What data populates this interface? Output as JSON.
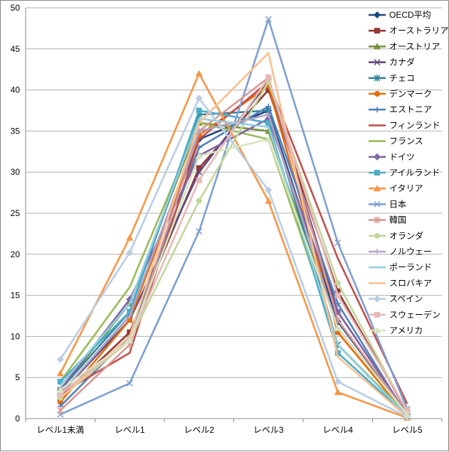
{
  "chart_data": {
    "type": "line",
    "title": "",
    "xlabel": "",
    "ylabel": "",
    "ylim": [
      0,
      50
    ],
    "yticks": [
      0,
      5,
      10,
      15,
      20,
      25,
      30,
      35,
      40,
      45,
      50
    ],
    "grid": "horizontal",
    "legend": "right",
    "categories": [
      "レベル1未満",
      "レベル1",
      "レベル2",
      "レベル3",
      "レベル4",
      "レベル5"
    ],
    "series": [
      {
        "name": "OECD平均",
        "color": "#1F497D",
        "marker": "diamond",
        "values": [
          3.0,
          12.5,
          34.0,
          37.5,
          11.8,
          0.5
        ]
      },
      {
        "name": "オーストラリア",
        "color": "#953735",
        "marker": "square",
        "values": [
          2.5,
          10.5,
          30.5,
          40.0,
          15.5,
          0.8
        ]
      },
      {
        "name": "オーストリア",
        "color": "#77933C",
        "marker": "triangle",
        "values": [
          3.5,
          14.0,
          36.0,
          35.0,
          11.0,
          0.5
        ]
      },
      {
        "name": "カナダ",
        "color": "#604A7B",
        "marker": "x",
        "values": [
          3.0,
          12.0,
          30.0,
          41.0,
          13.0,
          0.5
        ]
      },
      {
        "name": "チェコ",
        "color": "#31859C",
        "marker": "star",
        "values": [
          3.5,
          13.0,
          37.0,
          37.5,
          9.0,
          0.3
        ]
      },
      {
        "name": "デンマーク",
        "color": "#E46C0A",
        "marker": "circle",
        "values": [
          2.0,
          12.0,
          34.5,
          40.5,
          10.5,
          0.3
        ]
      },
      {
        "name": "エストニア",
        "color": "#4F81BD",
        "marker": "plus",
        "values": [
          1.5,
          10.0,
          33.0,
          38.0,
          14.0,
          0.3
        ]
      },
      {
        "name": "フィンランド",
        "color": "#C0504D",
        "marker": "none",
        "values": [
          3.0,
          8.0,
          34.0,
          41.0,
          19.5,
          1.8
        ]
      },
      {
        "name": "フランス",
        "color": "#9BBB59",
        "marker": "none",
        "values": [
          4.5,
          16.0,
          36.0,
          34.0,
          9.0,
          0.5
        ]
      },
      {
        "name": "ドイツ",
        "color": "#8064A2",
        "marker": "diamond",
        "values": [
          3.5,
          14.5,
          32.0,
          36.5,
          13.0,
          0.5
        ]
      },
      {
        "name": "アイルランド",
        "color": "#4BACC6",
        "marker": "square",
        "values": [
          4.5,
          13.0,
          37.5,
          36.0,
          8.0,
          0.3
        ]
      },
      {
        "name": "イタリア",
        "color": "#F79646",
        "marker": "triangle",
        "values": [
          5.5,
          22.0,
          42.0,
          26.5,
          3.2,
          0.1
        ]
      },
      {
        "name": "日本",
        "color": "#7F9FCF",
        "marker": "x",
        "values": [
          0.5,
          4.3,
          22.8,
          48.6,
          21.4,
          1.2
        ]
      },
      {
        "name": "韓国",
        "color": "#D99694",
        "marker": "star",
        "values": [
          1.0,
          9.0,
          35.0,
          41.5,
          12.0,
          0.5
        ]
      },
      {
        "name": "オランダ",
        "color": "#C3D69B",
        "marker": "circle",
        "values": [
          2.5,
          9.5,
          26.5,
          41.0,
          16.5,
          0.8
        ]
      },
      {
        "name": "ノルウェー",
        "color": "#B3A2C7",
        "marker": "plus",
        "values": [
          3.0,
          12.5,
          35.0,
          37.0,
          11.0,
          0.5
        ]
      },
      {
        "name": "ポーランド",
        "color": "#93CDDD",
        "marker": "none",
        "values": [
          4.0,
          14.0,
          36.5,
          35.5,
          9.0,
          0.3
        ]
      },
      {
        "name": "スロバキア",
        "color": "#FAC090",
        "marker": "none",
        "values": [
          2.5,
          10.0,
          36.0,
          44.5,
          7.5,
          0.2
        ]
      },
      {
        "name": "スペイン",
        "color": "#B9CDE5",
        "marker": "diamond",
        "values": [
          7.2,
          20.2,
          39.0,
          27.8,
          4.5,
          0.2
        ]
      },
      {
        "name": "スウェーデン",
        "color": "#E6B9B8",
        "marker": "square",
        "values": [
          3.0,
          9.5,
          29.0,
          41.5,
          15.0,
          1.0
        ]
      },
      {
        "name": "アメリカ",
        "color": "#D7E4BD",
        "marker": "triangle",
        "values": [
          3.5,
          9.5,
          32.0,
          34.0,
          11.0,
          0.5
        ]
      }
    ]
  }
}
